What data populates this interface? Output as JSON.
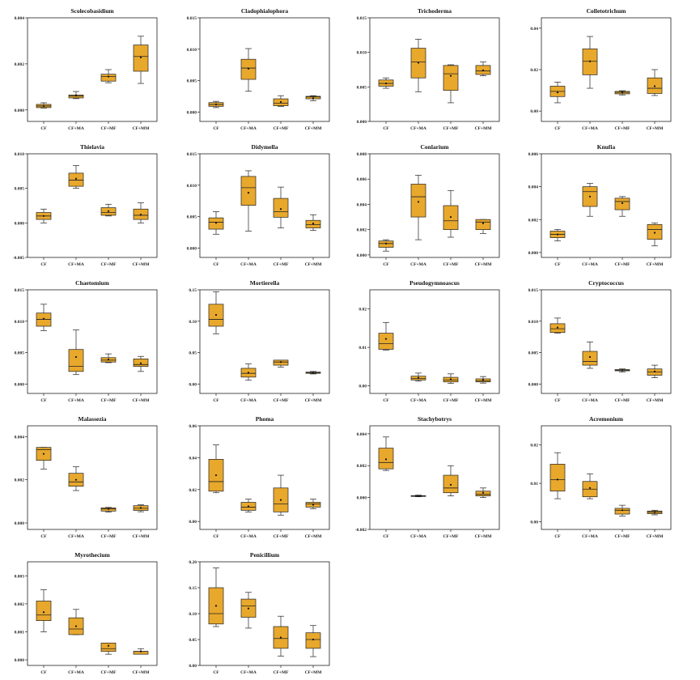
{
  "figure": {
    "box_color": "#E8A82C",
    "box_edge": "#222222",
    "mean_marker_color": "#111111"
  },
  "chart_data": [
    {
      "type": "box",
      "title": "Scolecobasidium",
      "categories": [
        "CF",
        "CF+MA",
        "CF+MF",
        "CF+MM"
      ],
      "ylim": [
        -0.0005,
        0.004
      ],
      "yticks": [
        "0.004",
        "0.002",
        "0.000"
      ],
      "ytick_values": [
        0.004,
        0.002,
        0.0
      ],
      "series": [
        {
          "min": 8e-05,
          "q1": 0.0001,
          "median": 0.00017,
          "q3": 0.00024,
          "max": 0.00031,
          "mean": 0.00017
        },
        {
          "min": 0.00049,
          "q1": 0.00052,
          "median": 0.0006,
          "q3": 0.00065,
          "max": 0.0008,
          "mean": 0.00063
        },
        {
          "min": 0.00118,
          "q1": 0.00125,
          "median": 0.00145,
          "q3": 0.00155,
          "max": 0.00175,
          "mean": 0.00145
        },
        {
          "min": 0.00115,
          "q1": 0.00168,
          "median": 0.00232,
          "q3": 0.00282,
          "max": 0.0032,
          "mean": 0.00228
        }
      ]
    },
    {
      "type": "box",
      "title": "Cladophialophora",
      "categories": [
        "CF",
        "CF+MA",
        "CF+MF",
        "CF+MM"
      ],
      "ylim": [
        -0.0015,
        0.015
      ],
      "yticks": [
        "0.015",
        "0.010",
        "0.005",
        "0.000"
      ],
      "ytick_values": [
        0.015,
        0.01,
        0.005,
        0.0
      ],
      "series": [
        {
          "min": 0.0007,
          "q1": 0.0009,
          "median": 0.0012,
          "q3": 0.0015,
          "max": 0.0017,
          "mean": 0.0012
        },
        {
          "min": 0.0033,
          "q1": 0.0052,
          "median": 0.007,
          "q3": 0.0084,
          "max": 0.0101,
          "mean": 0.0069
        },
        {
          "min": 0.0009,
          "q1": 0.001,
          "median": 0.0014,
          "q3": 0.0021,
          "max": 0.0026,
          "mean": 0.0016
        },
        {
          "min": 0.0018,
          "q1": 0.0021,
          "median": 0.0024,
          "q3": 0.0025,
          "max": 0.0026,
          "mean": 0.0022
        }
      ]
    },
    {
      "type": "box",
      "title": "Trichoderma",
      "categories": [
        "CF",
        "CF+MA",
        "CF+MF",
        "CF+MM"
      ],
      "ylim": [
        0,
        0.015
      ],
      "yticks": [
        "0.015",
        "0.010",
        "0.005",
        "0.000"
      ],
      "ytick_values": [
        0.015,
        0.01,
        0.005,
        0.0
      ],
      "series": [
        {
          "min": 0.0048,
          "q1": 0.0051,
          "median": 0.0055,
          "q3": 0.006,
          "max": 0.0063,
          "mean": 0.0055
        },
        {
          "min": 0.0043,
          "q1": 0.0063,
          "median": 0.0086,
          "q3": 0.0106,
          "max": 0.0119,
          "mean": 0.0085
        },
        {
          "min": 0.0027,
          "q1": 0.0045,
          "median": 0.0069,
          "q3": 0.0081,
          "max": 0.0082,
          "mean": 0.0066
        },
        {
          "min": 0.0066,
          "q1": 0.0068,
          "median": 0.0073,
          "q3": 0.0081,
          "max": 0.0086,
          "mean": 0.0074
        }
      ]
    },
    {
      "type": "box",
      "title": "Colletotrichum",
      "categories": [
        "CF",
        "CF+MA",
        "CF+MF",
        "CF+MM"
      ],
      "ylim": [
        -0.005,
        0.045
      ],
      "yticks": [
        "0.04",
        "0.02",
        "0.00"
      ],
      "ytick_values": [
        0.04,
        0.02,
        0.0
      ],
      "series": [
        {
          "min": 0.004,
          "q1": 0.007,
          "median": 0.0095,
          "q3": 0.012,
          "max": 0.014,
          "mean": 0.009
        },
        {
          "min": 0.011,
          "q1": 0.0175,
          "median": 0.024,
          "q3": 0.03,
          "max": 0.036,
          "mean": 0.024
        },
        {
          "min": 0.0078,
          "q1": 0.0083,
          "median": 0.009,
          "q3": 0.0095,
          "max": 0.0098,
          "mean": 0.009
        },
        {
          "min": 0.0075,
          "q1": 0.0085,
          "median": 0.011,
          "q3": 0.016,
          "max": 0.02,
          "mean": 0.012
        }
      ]
    },
    {
      "type": "box",
      "title": "Thielavia",
      "categories": [
        "CF",
        "CF+MA",
        "CF+MF",
        "CF+MM"
      ],
      "ylim": [
        -0.005,
        0.01
      ],
      "yticks": [
        "0.010",
        "0.005",
        "0.000",
        "-0.005"
      ],
      "ytick_values": [
        0.01,
        0.005,
        0.0,
        -0.005
      ],
      "series": [
        {
          "min": 0.0,
          "q1": 0.0005,
          "median": 0.001,
          "q3": 0.0015,
          "max": 0.002,
          "mean": 0.001
        },
        {
          "min": 0.005,
          "q1": 0.0053,
          "median": 0.0062,
          "q3": 0.0072,
          "max": 0.0083,
          "mean": 0.0064
        },
        {
          "min": 0.001,
          "q1": 0.0011,
          "median": 0.0015,
          "q3": 0.0022,
          "max": 0.0027,
          "mean": 0.0017
        },
        {
          "min": 0.0,
          "q1": 0.0005,
          "median": 0.0011,
          "q3": 0.002,
          "max": 0.0029,
          "mean": 0.0012
        }
      ]
    },
    {
      "type": "box",
      "title": "Didymella",
      "categories": [
        "CF",
        "CF+MA",
        "CF+MF",
        "CF+MM"
      ],
      "ylim": [
        -0.0015,
        0.015
      ],
      "yticks": [
        "0.015",
        "0.010",
        "0.005",
        "0.000"
      ],
      "ytick_values": [
        0.015,
        0.01,
        0.005,
        0.0
      ],
      "series": [
        {
          "min": 0.0022,
          "q1": 0.003,
          "median": 0.0041,
          "q3": 0.0048,
          "max": 0.0058,
          "mean": 0.004
        },
        {
          "min": 0.0027,
          "q1": 0.0068,
          "median": 0.0096,
          "q3": 0.0114,
          "max": 0.0123,
          "mean": 0.0088
        },
        {
          "min": 0.0032,
          "q1": 0.0049,
          "median": 0.0058,
          "q3": 0.0079,
          "max": 0.0097,
          "mean": 0.0062
        },
        {
          "min": 0.0028,
          "q1": 0.0032,
          "median": 0.0037,
          "q3": 0.0044,
          "max": 0.0053,
          "mean": 0.0039
        }
      ]
    },
    {
      "type": "box",
      "title": "Conlarium",
      "categories": [
        "CF",
        "CF+MA",
        "CF+MF",
        "CF+MM"
      ],
      "ylim": [
        -0.0002,
        0.008
      ],
      "yticks": [
        "0.008",
        "0.006",
        "0.004",
        "0.002",
        "0.000"
      ],
      "ytick_values": [
        0.008,
        0.006,
        0.004,
        0.002,
        0.0
      ],
      "series": [
        {
          "min": 0.0003,
          "q1": 0.0006,
          "median": 0.0009,
          "q3": 0.0011,
          "max": 0.0012,
          "mean": 0.0009
        },
        {
          "min": 0.0012,
          "q1": 0.003,
          "median": 0.0046,
          "q3": 0.0056,
          "max": 0.0063,
          "mean": 0.0042
        },
        {
          "min": 0.0014,
          "q1": 0.002,
          "median": 0.0027,
          "q3": 0.0039,
          "max": 0.0051,
          "mean": 0.003
        },
        {
          "min": 0.0017,
          "q1": 0.002,
          "median": 0.0026,
          "q3": 0.0028,
          "max": 0.0028,
          "mean": 0.0025
        }
      ]
    },
    {
      "type": "box",
      "title": "Knufia",
      "categories": [
        "CF",
        "CF+MA",
        "CF+MF",
        "CF+MM"
      ],
      "ylim": [
        -0.0003,
        0.006
      ],
      "yticks": [
        "0.006",
        "0.004",
        "0.002",
        "0.000"
      ],
      "ytick_values": [
        0.006,
        0.004,
        0.002,
        0.0
      ],
      "series": [
        {
          "min": 0.0007,
          "q1": 0.0009,
          "median": 0.0011,
          "q3": 0.0013,
          "max": 0.0014,
          "mean": 0.0011
        },
        {
          "min": 0.0022,
          "q1": 0.0028,
          "median": 0.0037,
          "q3": 0.004,
          "max": 0.0042,
          "mean": 0.0034
        },
        {
          "min": 0.0022,
          "q1": 0.0026,
          "median": 0.0031,
          "q3": 0.0033,
          "max": 0.0034,
          "mean": 0.003
        },
        {
          "min": 0.0004,
          "q1": 0.0008,
          "median": 0.0014,
          "q3": 0.0017,
          "max": 0.0018,
          "mean": 0.0012
        }
      ]
    },
    {
      "type": "box",
      "title": "Chaetomium",
      "categories": [
        "CF",
        "CF+MA",
        "CF+MF",
        "CF+MM"
      ],
      "ylim": [
        -0.0015,
        0.015
      ],
      "yticks": [
        "0.015",
        "0.010",
        "0.005",
        "0.000"
      ],
      "ytick_values": [
        0.015,
        0.01,
        0.005,
        0.0
      ],
      "series": [
        {
          "min": 0.0085,
          "q1": 0.0092,
          "median": 0.0103,
          "q3": 0.0113,
          "max": 0.0127,
          "mean": 0.0104
        },
        {
          "min": 0.0015,
          "q1": 0.002,
          "median": 0.0028,
          "q3": 0.0055,
          "max": 0.0086,
          "mean": 0.0043
        },
        {
          "min": 0.0034,
          "q1": 0.0035,
          "median": 0.0038,
          "q3": 0.0042,
          "max": 0.0048,
          "mean": 0.0039
        },
        {
          "min": 0.002,
          "q1": 0.0028,
          "median": 0.0031,
          "q3": 0.004,
          "max": 0.0044,
          "mean": 0.0033
        }
      ]
    },
    {
      "type": "box",
      "title": "Mortierella",
      "categories": [
        "CF",
        "CF+MA",
        "CF+MF",
        "CF+MM"
      ],
      "ylim": [
        -0.015,
        0.15
      ],
      "yticks": [
        "0.15",
        "0.10",
        "0.05",
        "0.00"
      ],
      "ytick_values": [
        0.15,
        0.1,
        0.05,
        0.0
      ],
      "series": [
        {
          "min": 0.08,
          "q1": 0.092,
          "median": 0.103,
          "q3": 0.127,
          "max": 0.147,
          "mean": 0.11
        },
        {
          "min": 0.006,
          "q1": 0.011,
          "median": 0.017,
          "q3": 0.025,
          "max": 0.032,
          "mean": 0.018
        },
        {
          "min": 0.027,
          "q1": 0.03,
          "median": 0.035,
          "q3": 0.038,
          "max": 0.038,
          "mean": 0.035
        },
        {
          "min": 0.016,
          "q1": 0.017,
          "median": 0.018,
          "q3": 0.019,
          "max": 0.02,
          "mean": 0.018
        }
      ]
    },
    {
      "type": "box",
      "title": "Pseudogymnoascus",
      "categories": [
        "CF",
        "CF+MA",
        "CF+MF",
        "CF+MM"
      ],
      "ylim": [
        -0.002,
        0.025
      ],
      "yticks": [
        "0.02",
        "0.01",
        "0.00"
      ],
      "ytick_values": [
        0.02,
        0.01,
        0.0
      ],
      "series": [
        {
          "min": 0.0093,
          "q1": 0.0095,
          "median": 0.011,
          "q3": 0.0137,
          "max": 0.0165,
          "mean": 0.0122
        },
        {
          "min": 0.0012,
          "q1": 0.0015,
          "median": 0.0019,
          "q3": 0.0025,
          "max": 0.0033,
          "mean": 0.0021
        },
        {
          "min": 0.0006,
          "q1": 0.001,
          "median": 0.0015,
          "q3": 0.0022,
          "max": 0.0031,
          "mean": 0.0017
        },
        {
          "min": 0.0007,
          "q1": 0.001,
          "median": 0.0013,
          "q3": 0.0018,
          "max": 0.0024,
          "mean": 0.0015
        }
      ]
    },
    {
      "type": "box",
      "title": "Cryptococcus",
      "categories": [
        "CF",
        "CF+MA",
        "CF+MF",
        "CF+MM"
      ],
      "ylim": [
        -0.0015,
        0.015
      ],
      "yticks": [
        "0.015",
        "0.010",
        "0.005",
        "0.000"
      ],
      "ytick_values": [
        0.015,
        0.01,
        0.005,
        0.0
      ],
      "series": [
        {
          "min": 0.0081,
          "q1": 0.0082,
          "median": 0.0088,
          "q3": 0.0096,
          "max": 0.0105,
          "mean": 0.009
        },
        {
          "min": 0.0025,
          "q1": 0.003,
          "median": 0.0036,
          "q3": 0.0052,
          "max": 0.0067,
          "mean": 0.0043
        },
        {
          "min": 0.0019,
          "q1": 0.0021,
          "median": 0.0022,
          "q3": 0.0023,
          "max": 0.0024,
          "mean": 0.0022
        },
        {
          "min": 0.001,
          "q1": 0.0014,
          "median": 0.0019,
          "q3": 0.0024,
          "max": 0.003,
          "mean": 0.002
        }
      ]
    },
    {
      "type": "box",
      "title": "Malassezia",
      "categories": [
        "CF",
        "CF+MA",
        "CF+MF",
        "CF+MM"
      ],
      "ylim": [
        -0.0003,
        0.0045
      ],
      "yticks": [
        "0.004",
        "0.002",
        "0.000"
      ],
      "ytick_values": [
        0.004,
        0.002,
        0.0
      ],
      "series": [
        {
          "min": 0.0025,
          "q1": 0.0029,
          "median": 0.0034,
          "q3": 0.0035,
          "max": 0.0035,
          "mean": 0.0032
        },
        {
          "min": 0.0015,
          "q1": 0.0017,
          "median": 0.0019,
          "q3": 0.0023,
          "max": 0.0026,
          "mean": 0.002
        },
        {
          "min": 0.0005,
          "q1": 0.00055,
          "median": 0.00065,
          "q3": 0.0007,
          "max": 0.00072,
          "mean": 0.00065
        },
        {
          "min": 0.00052,
          "q1": 0.00058,
          "median": 0.00068,
          "q3": 0.0008,
          "max": 0.00084,
          "mean": 0.0007
        }
      ]
    },
    {
      "type": "box",
      "title": "Phoma",
      "categories": [
        "CF",
        "CF+MA",
        "CF+MF",
        "CF+MM"
      ],
      "ylim": [
        -0.005,
        0.06
      ],
      "yticks": [
        "0.06",
        "0.04",
        "0.02",
        "0.00"
      ],
      "ytick_values": [
        0.06,
        0.04,
        0.02,
        0.0
      ],
      "series": [
        {
          "min": 0.018,
          "q1": 0.019,
          "median": 0.025,
          "q3": 0.039,
          "max": 0.048,
          "mean": 0.029
        },
        {
          "min": 0.006,
          "q1": 0.007,
          "median": 0.009,
          "q3": 0.012,
          "max": 0.014,
          "mean": 0.0095
        },
        {
          "min": 0.004,
          "q1": 0.006,
          "median": 0.011,
          "q3": 0.021,
          "max": 0.029,
          "mean": 0.0135
        },
        {
          "min": 0.008,
          "q1": 0.009,
          "median": 0.011,
          "q3": 0.012,
          "max": 0.014,
          "mean": 0.0105
        }
      ]
    },
    {
      "type": "box",
      "title": "Stachybotrys",
      "categories": [
        "CF",
        "CF+MA",
        "CF+MF",
        "CF+MM"
      ],
      "ylim": [
        -0.002,
        0.0045
      ],
      "yticks": [
        "0.004",
        "0.002",
        "0.000",
        "-0.002"
      ],
      "ytick_values": [
        0.004,
        0.002,
        0.0,
        -0.002
      ],
      "series": [
        {
          "min": 0.0017,
          "q1": 0.0018,
          "median": 0.0022,
          "q3": 0.0031,
          "max": 0.0038,
          "mean": 0.0024
        },
        {
          "min": 5e-05,
          "q1": 8e-05,
          "median": 0.0001,
          "q3": 0.00012,
          "max": 0.00015,
          "mean": 0.0001
        },
        {
          "min": 0.0001,
          "q1": 0.0003,
          "median": 0.0006,
          "q3": 0.0014,
          "max": 0.002,
          "mean": 0.0008
        },
        {
          "min": 0.0,
          "q1": 0.0001,
          "median": 0.0002,
          "q3": 0.0004,
          "max": 0.0006,
          "mean": 0.0003
        }
      ]
    },
    {
      "type": "box",
      "title": "Acremonium",
      "categories": [
        "CF",
        "CF+MA",
        "CF+MF",
        "CF+MM"
      ],
      "ylim": [
        -0.002,
        0.025
      ],
      "yticks": [
        "0.02",
        "0.01",
        "0.00"
      ],
      "ytick_values": [
        0.02,
        0.01,
        0.0
      ],
      "series": [
        {
          "min": 0.006,
          "q1": 0.008,
          "median": 0.011,
          "q3": 0.015,
          "max": 0.018,
          "mean": 0.011
        },
        {
          "min": 0.006,
          "q1": 0.0065,
          "median": 0.0085,
          "q3": 0.0105,
          "max": 0.0125,
          "mean": 0.0088
        },
        {
          "min": 0.0015,
          "q1": 0.002,
          "median": 0.003,
          "q3": 0.0035,
          "max": 0.0043,
          "mean": 0.003
        },
        {
          "min": 0.0018,
          "q1": 0.0021,
          "median": 0.0025,
          "q3": 0.0028,
          "max": 0.003,
          "mean": 0.0025
        }
      ]
    },
    {
      "type": "box",
      "title": "Myrothecium",
      "categories": [
        "CF",
        "CF+MA",
        "CF+MF",
        "CF+MM"
      ],
      "ylim": [
        -0.0002,
        0.0035
      ],
      "yticks": [
        "0.003",
        "0.002",
        "0.001",
        "0.000"
      ],
      "ytick_values": [
        0.003,
        0.002,
        0.001,
        0.0
      ],
      "series": [
        {
          "min": 0.001,
          "q1": 0.0014,
          "median": 0.0016,
          "q3": 0.0021,
          "max": 0.0025,
          "mean": 0.0017
        },
        {
          "min": 0.0009,
          "q1": 0.0009,
          "median": 0.0011,
          "q3": 0.0015,
          "max": 0.0018,
          "mean": 0.0012
        },
        {
          "min": 0.0002,
          "q1": 0.0003,
          "median": 0.0004,
          "q3": 0.0006,
          "max": 0.0006,
          "mean": 0.0005
        },
        {
          "min": 0.0002,
          "q1": 0.0002,
          "median": 0.0003,
          "q3": 0.0003,
          "max": 0.0004,
          "mean": 0.0003
        }
      ]
    },
    {
      "type": "box",
      "title": "Penicillium",
      "categories": [
        "CF",
        "CF+MA",
        "CF+MF",
        "CF+MM"
      ],
      "ylim": [
        0,
        0.2
      ],
      "yticks": [
        "0.20",
        "0.15",
        "0.10",
        "0.05",
        "0.00"
      ],
      "ytick_values": [
        0.2,
        0.15,
        0.1,
        0.05,
        0.0
      ],
      "series": [
        {
          "min": 0.075,
          "q1": 0.08,
          "median": 0.1,
          "q3": 0.15,
          "max": 0.188,
          "mean": 0.115
        },
        {
          "min": 0.072,
          "q1": 0.093,
          "median": 0.115,
          "q3": 0.128,
          "max": 0.141,
          "mean": 0.11
        },
        {
          "min": 0.018,
          "q1": 0.033,
          "median": 0.052,
          "q3": 0.075,
          "max": 0.095,
          "mean": 0.054
        },
        {
          "min": 0.017,
          "q1": 0.033,
          "median": 0.05,
          "q3": 0.063,
          "max": 0.077,
          "mean": 0.05
        }
      ]
    }
  ]
}
